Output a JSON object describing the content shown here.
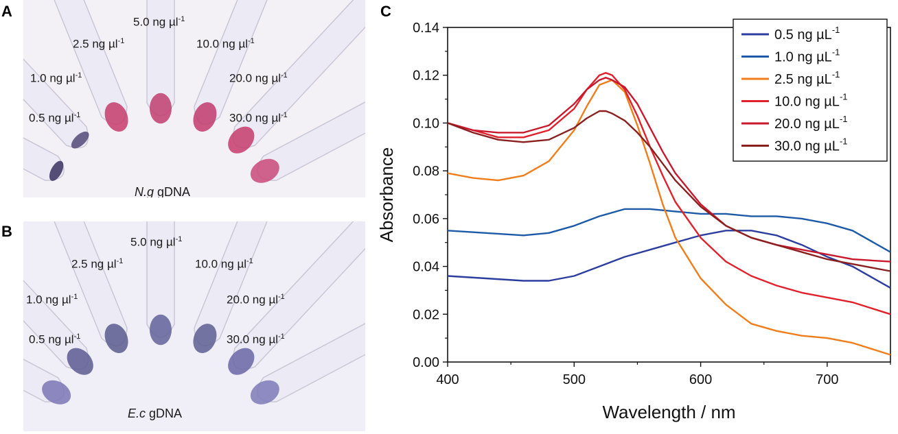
{
  "panels": {
    "A": {
      "letter": "A",
      "caption_italic": "N.g",
      "caption_rest": " gDNA",
      "tubes": [
        {
          "base": "0.5 ng µl",
          "sup": "-1",
          "color": "#3a3360",
          "fill": 0.1
        },
        {
          "base": "1.0 ng µl",
          "sup": "-1",
          "color": "#544a78",
          "fill": 0.1
        },
        {
          "base": "2.5 ng µl",
          "sup": "-1",
          "color": "#c63c6b",
          "fill": 0.9
        },
        {
          "base": "5.0 ng µl",
          "sup": "-1",
          "color": "#c13d6e",
          "fill": 0.9
        },
        {
          "base": "10.0 ng µl",
          "sup": "-1",
          "color": "#c23b6c",
          "fill": 0.9
        },
        {
          "base": "20.0 ng µl",
          "sup": "-1",
          "color": "#c63c6b",
          "fill": 0.9
        },
        {
          "base": "30.0 ng µl",
          "sup": "-1",
          "color": "#c94a7a",
          "fill": 0.9
        }
      ]
    },
    "B": {
      "letter": "B",
      "caption_italic": "E.c",
      "caption_rest": " gDNA",
      "tubes": [
        {
          "base": "0.5 ng µl",
          "sup": "-1",
          "color": "#7b76b5",
          "fill": 0.9
        },
        {
          "base": "1.0 ng µl",
          "sup": "-1",
          "color": "#5c5a90",
          "fill": 0.9
        },
        {
          "base": "2.5 ng µl",
          "sup": "-1",
          "color": "#5a5a8e",
          "fill": 0.9
        },
        {
          "base": "5.0 ng µl",
          "sup": "-1",
          "color": "#62639a",
          "fill": 0.9
        },
        {
          "base": "10.0 ng µl",
          "sup": "-1",
          "color": "#5d5e92",
          "fill": 0.9
        },
        {
          "base": "20.0 ng µl",
          "sup": "-1",
          "color": "#6a66a6",
          "fill": 0.9
        },
        {
          "base": "30.0 ng µl",
          "sup": "-1",
          "color": "#7e7ab9",
          "fill": 0.9
        }
      ]
    }
  },
  "chart_data": {
    "panel_letter": "C",
    "type": "line",
    "xlabel": "Wavelength / nm",
    "ylabel": "Absorbance",
    "xlim": [
      400,
      750
    ],
    "ylim": [
      0.0,
      0.14
    ],
    "xticks": [
      "400",
      "500",
      "600",
      "700"
    ],
    "xtick_values": [
      400,
      500,
      600,
      700
    ],
    "yticks": [
      "0.00",
      "0.02",
      "0.04",
      "0.06",
      "0.08",
      "0.10",
      "0.12",
      "0.14"
    ],
    "ytick_values": [
      0.0,
      0.02,
      0.04,
      0.06,
      0.08,
      0.1,
      0.12,
      0.14
    ],
    "legend_position": "top-right",
    "series": [
      {
        "name": "0.5 ng µL",
        "sup": "-1",
        "color": "#2b3d9e",
        "x": [
          400,
          430,
          460,
          480,
          500,
          520,
          540,
          560,
          580,
          600,
          620,
          640,
          660,
          680,
          700,
          720,
          750
        ],
        "y": [
          0.036,
          0.035,
          0.034,
          0.034,
          0.036,
          0.04,
          0.044,
          0.047,
          0.05,
          0.053,
          0.055,
          0.055,
          0.053,
          0.049,
          0.044,
          0.04,
          0.031
        ]
      },
      {
        "name": "1.0 ng µL",
        "sup": "-1",
        "color": "#1c5aa8",
        "x": [
          400,
          430,
          460,
          480,
          500,
          520,
          540,
          560,
          580,
          600,
          620,
          640,
          660,
          680,
          700,
          720,
          750
        ],
        "y": [
          0.055,
          0.054,
          0.053,
          0.054,
          0.057,
          0.061,
          0.064,
          0.064,
          0.063,
          0.062,
          0.062,
          0.061,
          0.061,
          0.06,
          0.058,
          0.055,
          0.046
        ]
      },
      {
        "name": "2.5 ng µL",
        "sup": "-1",
        "color": "#f07d1a",
        "x": [
          400,
          420,
          440,
          460,
          480,
          500,
          510,
          520,
          530,
          540,
          550,
          560,
          570,
          580,
          600,
          620,
          640,
          660,
          680,
          700,
          720,
          750
        ],
        "y": [
          0.079,
          0.077,
          0.076,
          0.078,
          0.084,
          0.097,
          0.107,
          0.116,
          0.118,
          0.113,
          0.099,
          0.083,
          0.066,
          0.052,
          0.035,
          0.024,
          0.016,
          0.013,
          0.011,
          0.01,
          0.008,
          0.003
        ]
      },
      {
        "name": "10.0 ng µL",
        "sup": "-1",
        "color": "#e0212b",
        "x": [
          400,
          420,
          440,
          460,
          480,
          500,
          510,
          520,
          525,
          530,
          540,
          550,
          560,
          570,
          580,
          600,
          620,
          640,
          660,
          680,
          700,
          720,
          750
        ],
        "y": [
          0.1,
          0.097,
          0.094,
          0.094,
          0.097,
          0.106,
          0.114,
          0.12,
          0.121,
          0.12,
          0.114,
          0.103,
          0.09,
          0.078,
          0.067,
          0.052,
          0.042,
          0.036,
          0.032,
          0.029,
          0.027,
          0.025,
          0.02
        ]
      },
      {
        "name": "20.0 ng µL",
        "sup": "-1",
        "color": "#c8182c",
        "x": [
          400,
          420,
          440,
          460,
          480,
          500,
          510,
          520,
          525,
          530,
          540,
          550,
          560,
          570,
          580,
          600,
          620,
          640,
          660,
          680,
          700,
          720,
          750
        ],
        "y": [
          0.1,
          0.097,
          0.096,
          0.096,
          0.099,
          0.108,
          0.114,
          0.118,
          0.119,
          0.118,
          0.115,
          0.108,
          0.098,
          0.088,
          0.079,
          0.066,
          0.057,
          0.052,
          0.049,
          0.047,
          0.045,
          0.043,
          0.042
        ]
      },
      {
        "name": "30.0 ng µL",
        "sup": "-1",
        "color": "#8b1f1f",
        "x": [
          400,
          420,
          440,
          460,
          480,
          500,
          510,
          520,
          525,
          530,
          540,
          550,
          560,
          570,
          580,
          600,
          620,
          640,
          660,
          680,
          700,
          720,
          750
        ],
        "y": [
          0.1,
          0.096,
          0.093,
          0.092,
          0.093,
          0.098,
          0.102,
          0.105,
          0.105,
          0.104,
          0.101,
          0.096,
          0.09,
          0.083,
          0.076,
          0.065,
          0.057,
          0.052,
          0.049,
          0.046,
          0.043,
          0.041,
          0.038
        ]
      }
    ]
  }
}
